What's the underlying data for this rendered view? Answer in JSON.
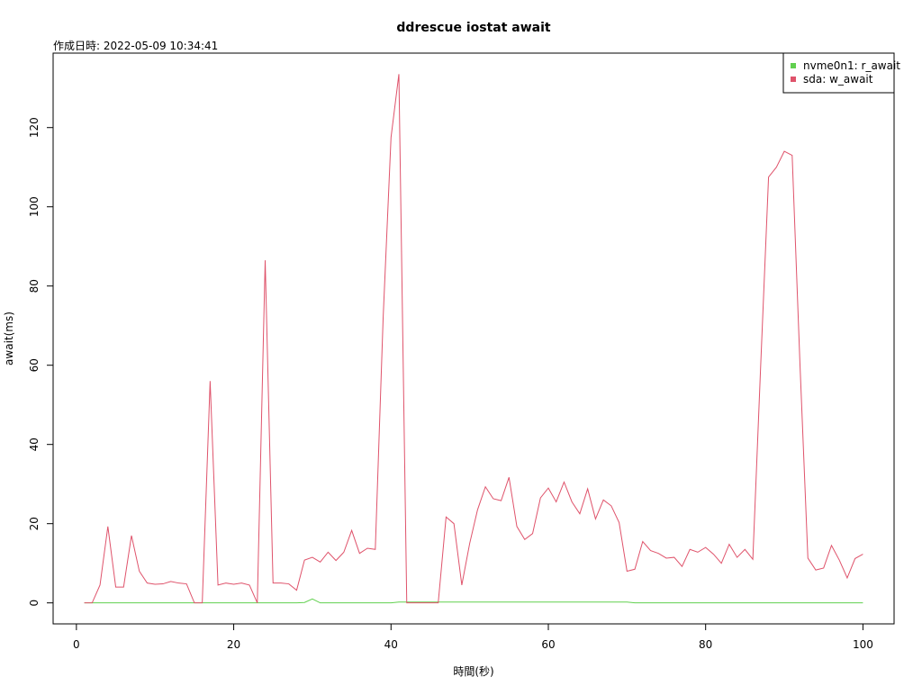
{
  "chart_data": {
    "type": "line",
    "title": "ddrescue iostat await",
    "subtitle": "作成日時: 2022-05-09 10:34:41",
    "x_label": "時間(秒)",
    "y_label": "await(ms)",
    "x": [
      1,
      2,
      3,
      4,
      5,
      6,
      7,
      8,
      9,
      10,
      11,
      12,
      13,
      14,
      15,
      16,
      17,
      18,
      19,
      20,
      21,
      22,
      23,
      24,
      25,
      26,
      27,
      28,
      29,
      30,
      31,
      32,
      33,
      34,
      35,
      36,
      37,
      38,
      39,
      40,
      41,
      42,
      43,
      44,
      45,
      46,
      47,
      48,
      49,
      50,
      51,
      52,
      53,
      54,
      55,
      56,
      57,
      58,
      59,
      60,
      61,
      62,
      63,
      64,
      65,
      66,
      67,
      68,
      69,
      70,
      71,
      72,
      73,
      74,
      75,
      76,
      77,
      78,
      79,
      80,
      81,
      82,
      83,
      84,
      85,
      86,
      87,
      88,
      89,
      90,
      91,
      92,
      93,
      94,
      95,
      96,
      97,
      98,
      99,
      100
    ],
    "series": [
      {
        "name": "nvme0n1: r_await",
        "color": "#61D04F",
        "values": [
          0,
          0,
          0,
          0,
          0,
          0,
          0,
          0,
          0,
          0,
          0,
          0,
          0,
          0,
          0,
          0,
          0,
          0,
          0,
          0,
          0,
          0,
          0,
          0,
          0,
          0,
          0,
          0,
          0.1,
          1,
          0,
          0,
          0,
          0,
          0,
          0,
          0,
          0,
          0,
          0,
          0.2,
          0.2,
          0.2,
          0.2,
          0.2,
          0.2,
          0.2,
          0.2,
          0.2,
          0.2,
          0.2,
          0.2,
          0.2,
          0.2,
          0.2,
          0.2,
          0.2,
          0.2,
          0.2,
          0.2,
          0.2,
          0.2,
          0.2,
          0.2,
          0.2,
          0.2,
          0.2,
          0.2,
          0.2,
          0.2,
          0,
          0,
          0,
          0,
          0,
          0,
          0,
          0,
          0,
          0,
          0,
          0,
          0,
          0,
          0,
          0,
          0,
          0,
          0,
          0,
          0,
          0,
          0,
          0,
          0,
          0,
          0,
          0,
          0,
          0
        ]
      },
      {
        "name": "sda: w_await",
        "color": "#DF536B",
        "values": [
          0,
          0,
          4.5,
          19.3,
          4,
          4,
          17,
          8,
          5,
          4.7,
          4.8,
          5.4,
          5,
          4.8,
          0,
          0,
          56,
          4.5,
          5,
          4.7,
          5,
          4.5,
          0,
          86.5,
          5,
          5,
          4.8,
          3.2,
          10.8,
          11.5,
          10.3,
          12.8,
          10.7,
          12.8,
          18.3,
          12.5,
          13.8,
          13.5,
          72,
          117.5,
          133.5,
          0,
          0,
          0,
          0,
          0,
          21.7,
          20,
          4.5,
          15,
          23.5,
          29.3,
          26.3,
          25.8,
          31.7,
          19.3,
          16,
          17.5,
          26.5,
          29,
          25.5,
          30.5,
          25.5,
          22.5,
          28.8,
          21.2,
          26,
          24.5,
          20.3,
          8,
          8.5,
          15.5,
          13.2,
          12.5,
          11.3,
          11.5,
          9.2,
          13.5,
          12.8,
          14,
          12.3,
          10,
          14.8,
          11.5,
          13.5,
          11,
          60,
          107.5,
          110,
          114,
          113,
          60,
          11.3,
          8.3,
          8.8,
          14.5,
          10.8,
          6.3,
          11.2,
          12.3
        ]
      }
    ],
    "xlim": [
      -2.96,
      103.96
    ],
    "ylim": [
      -5.3,
      138.8
    ],
    "xticks": [
      0,
      20,
      40,
      60,
      80,
      100
    ],
    "yticks": [
      0,
      20,
      40,
      60,
      80,
      100,
      120
    ],
    "legend": "top-right"
  }
}
